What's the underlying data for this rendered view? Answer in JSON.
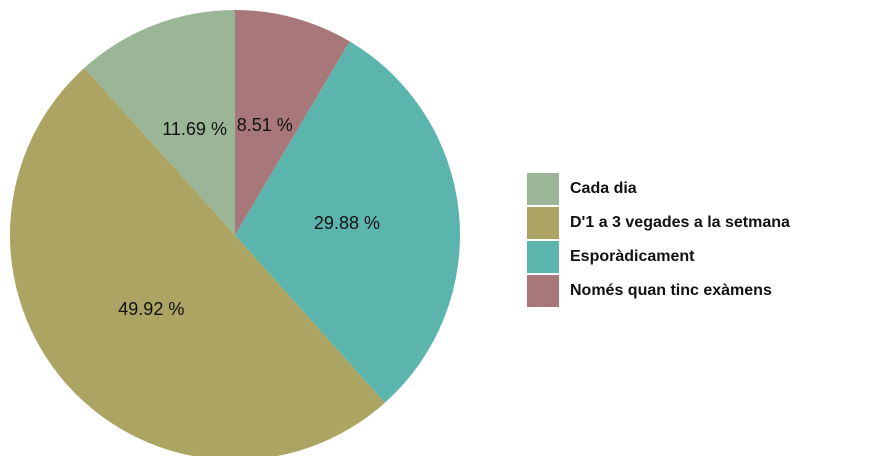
{
  "chart_data": {
    "type": "pie",
    "categories": [
      "Cada dia",
      "D'1 a 3 vegades a la setmana",
      "Esporàdicament",
      "Només quan tinc exàmens"
    ],
    "values": [
      11.69,
      49.92,
      29.88,
      8.51
    ],
    "value_labels": [
      "11.69 %",
      "49.92 %",
      "29.88 %",
      "8.51 %"
    ],
    "colors": [
      "#9bb597",
      "#aba463",
      "#5bb5ad",
      "#a8777a"
    ]
  }
}
